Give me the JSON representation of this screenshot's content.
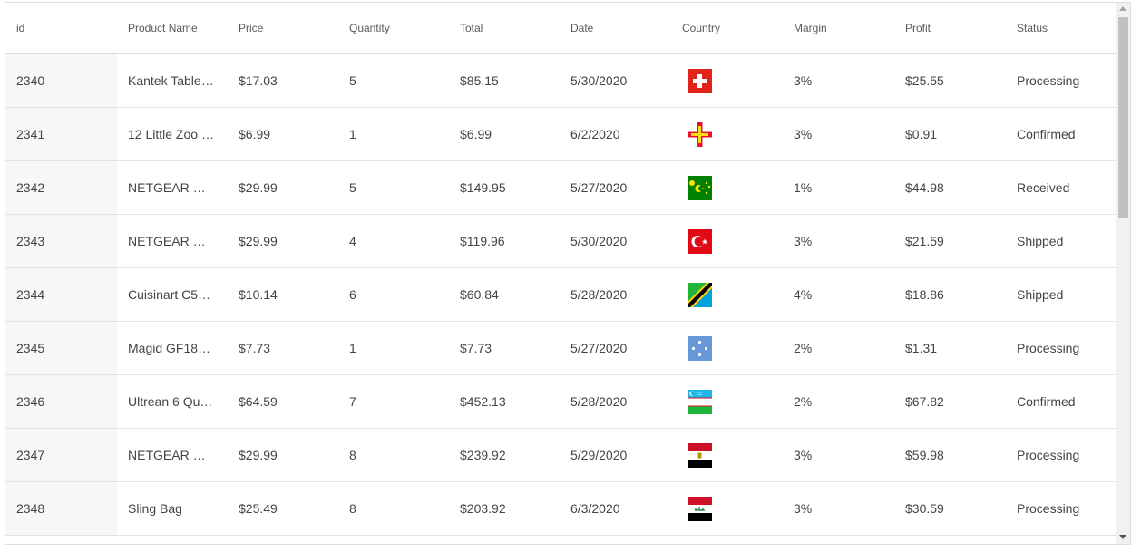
{
  "columns": [
    {
      "key": "id",
      "label": "id"
    },
    {
      "key": "product",
      "label": "Product Name"
    },
    {
      "key": "price",
      "label": "Price"
    },
    {
      "key": "quantity",
      "label": "Quantity"
    },
    {
      "key": "total",
      "label": "Total"
    },
    {
      "key": "date",
      "label": "Date"
    },
    {
      "key": "country",
      "label": "Country"
    },
    {
      "key": "margin",
      "label": "Margin"
    },
    {
      "key": "profit",
      "label": "Profit"
    },
    {
      "key": "status",
      "label": "Status"
    }
  ],
  "rows": [
    {
      "id": "2340",
      "product": "Kantek Table…",
      "price": "$17.03",
      "quantity": "5",
      "total": "$85.15",
      "date": "5/30/2020",
      "country_flag": "switzerland-flag-icon",
      "margin": "3%",
      "profit": "$25.55",
      "status": "Processing"
    },
    {
      "id": "2341",
      "product": "12 Little Zoo …",
      "price": "$6.99",
      "quantity": "1",
      "total": "$6.99",
      "date": "6/2/2020",
      "country_flag": "guernsey-flag-icon",
      "margin": "3%",
      "profit": "$0.91",
      "status": "Confirmed"
    },
    {
      "id": "2342",
      "product": "NETGEAR …",
      "price": "$29.99",
      "quantity": "5",
      "total": "$149.95",
      "date": "5/27/2020",
      "country_flag": "cocos-islands-flag-icon",
      "margin": "1%",
      "profit": "$44.98",
      "status": "Received"
    },
    {
      "id": "2343",
      "product": "NETGEAR …",
      "price": "$29.99",
      "quantity": "4",
      "total": "$119.96",
      "date": "5/30/2020",
      "country_flag": "turkey-flag-icon",
      "margin": "3%",
      "profit": "$21.59",
      "status": "Shipped"
    },
    {
      "id": "2344",
      "product": "Cuisinart C5…",
      "price": "$10.14",
      "quantity": "6",
      "total": "$60.84",
      "date": "5/28/2020",
      "country_flag": "tanzania-flag-icon",
      "margin": "4%",
      "profit": "$18.86",
      "status": "Shipped"
    },
    {
      "id": "2345",
      "product": "Magid GF18…",
      "price": "$7.73",
      "quantity": "1",
      "total": "$7.73",
      "date": "5/27/2020",
      "country_flag": "micronesia-flag-icon",
      "margin": "2%",
      "profit": "$1.31",
      "status": "Processing"
    },
    {
      "id": "2346",
      "product": "Ultrean 6 Qu…",
      "price": "$64.59",
      "quantity": "7",
      "total": "$452.13",
      "date": "5/28/2020",
      "country_flag": "uzbekistan-flag-icon",
      "margin": "2%",
      "profit": "$67.82",
      "status": "Confirmed"
    },
    {
      "id": "2347",
      "product": "NETGEAR …",
      "price": "$29.99",
      "quantity": "8",
      "total": "$239.92",
      "date": "5/29/2020",
      "country_flag": "egypt-flag-icon",
      "margin": "3%",
      "profit": "$59.98",
      "status": "Processing"
    },
    {
      "id": "2348",
      "product": "Sling Bag",
      "price": "$25.49",
      "quantity": "8",
      "total": "$203.92",
      "date": "6/3/2020",
      "country_flag": "iraq-flag-icon",
      "margin": "3%",
      "profit": "$30.59",
      "status": "Processing"
    }
  ]
}
